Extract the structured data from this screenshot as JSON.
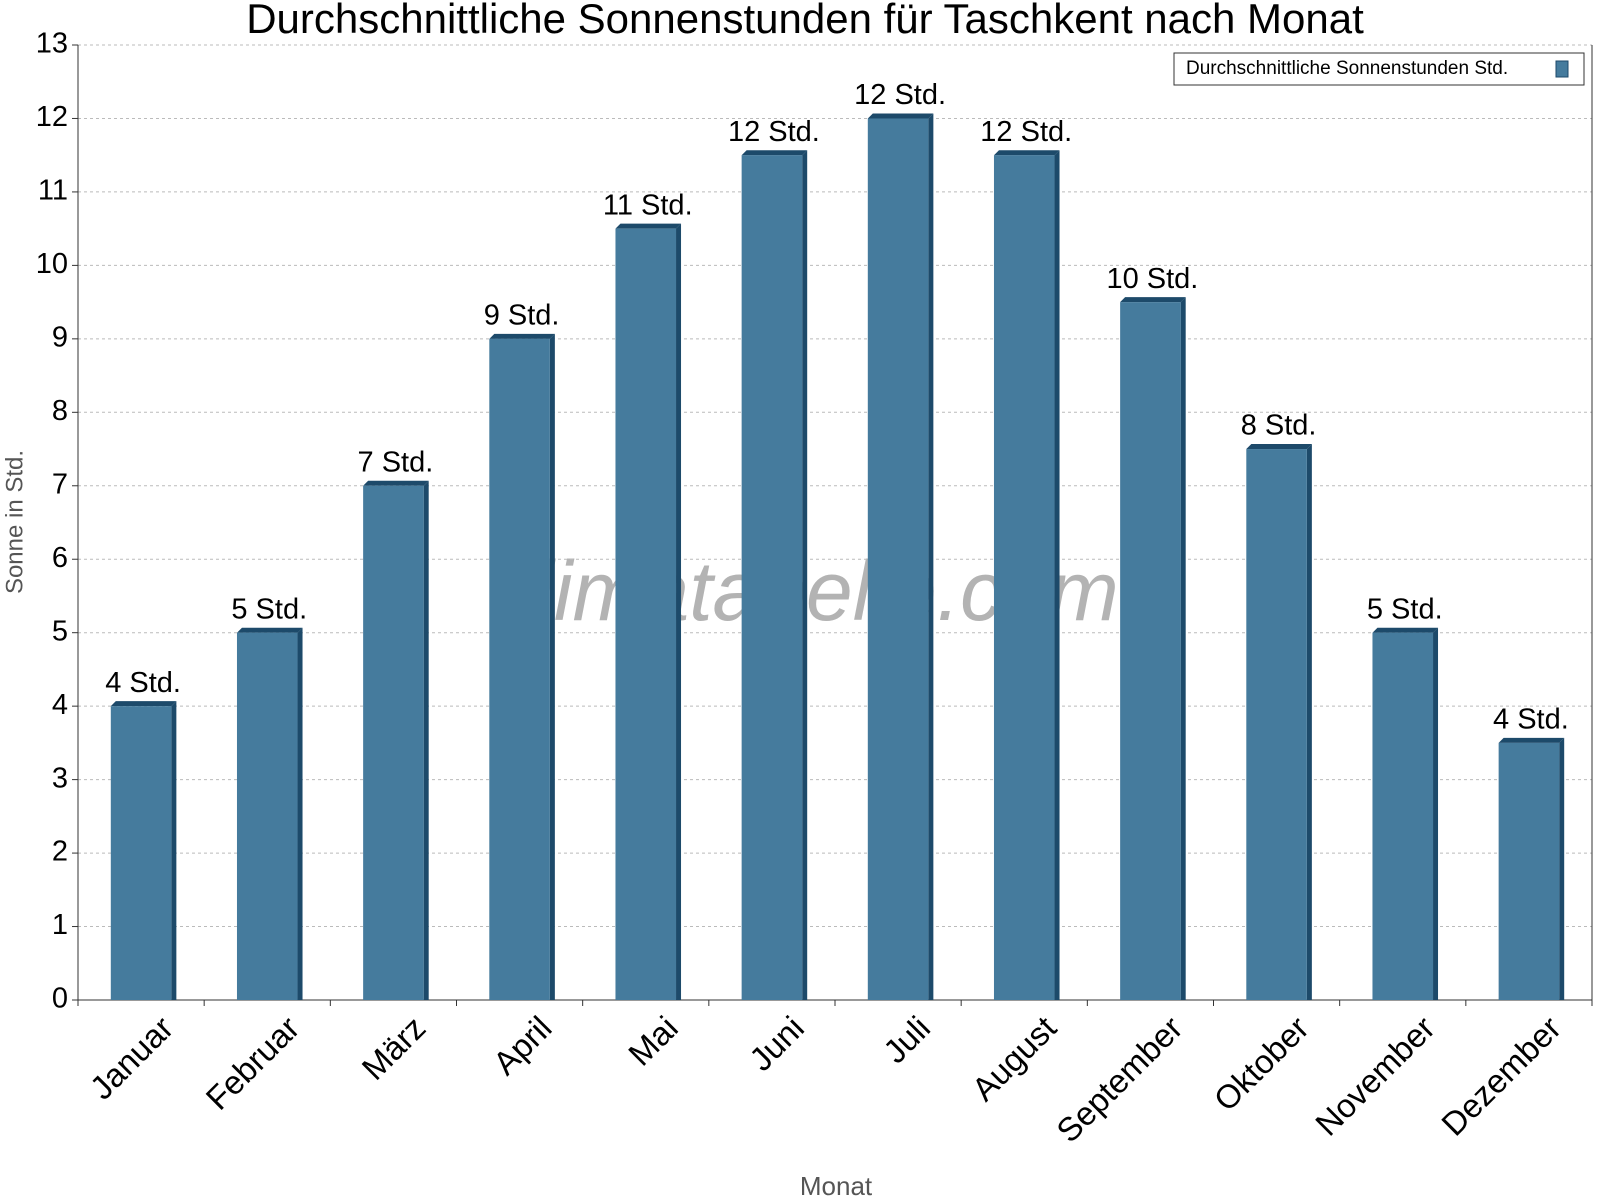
{
  "chart_data": {
    "type": "bar",
    "title": "Durchschnittliche Sonnenstunden für Taschkent nach Monat",
    "x_label": "Monat",
    "y_label": "Sonne in Std.",
    "watermark": "klimatabelle.com",
    "categories": [
      "Januar",
      "Februar",
      "März",
      "April",
      "Mai",
      "Juni",
      "Juli",
      "August",
      "September",
      "Oktober",
      "November",
      "Dezember"
    ],
    "series": [
      {
        "name": "Durchschnittliche Sonnenstunden Std.",
        "color": "#457b9d",
        "values": [
          4,
          5,
          7,
          9,
          10.5,
          11.5,
          12,
          11.5,
          9.5,
          7.5,
          5,
          3.5
        ],
        "value_labels": [
          "4 Std.",
          "5 Std.",
          "7 Std.",
          "9 Std.",
          "11 Std.",
          "12 Std.",
          "12 Std.",
          "12 Std.",
          "10 Std.",
          "8 Std.",
          "5 Std.",
          "4 Std."
        ]
      }
    ],
    "ylim": [
      0,
      13
    ],
    "yticks": [
      0,
      1,
      2,
      3,
      4,
      5,
      6,
      7,
      8,
      9,
      10,
      11,
      12,
      13
    ],
    "grid": true,
    "legend": "top-right"
  }
}
